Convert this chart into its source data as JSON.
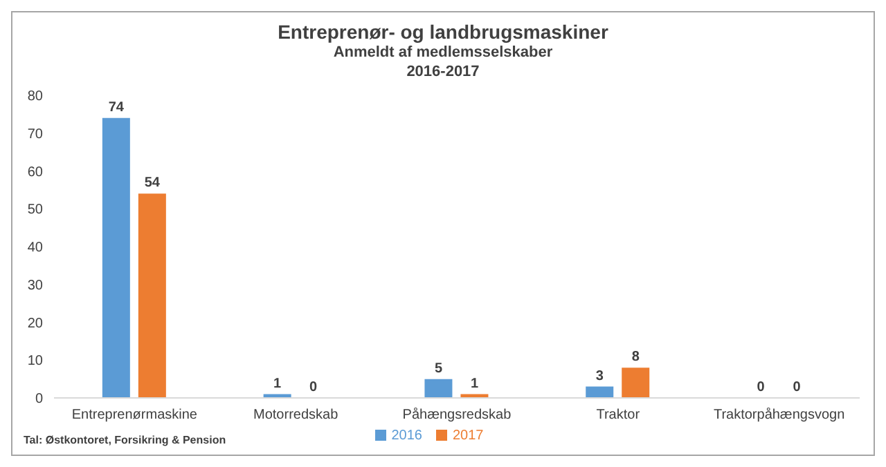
{
  "chart_data": {
    "type": "bar",
    "title": "Entreprenør- og landbrugsmaskiner",
    "subtitle": "Anmeldt af medlemsselskaber\n2016-2017",
    "categories": [
      "Entreprenørmaskine",
      "Motorredskab",
      "Påhængsredskab",
      "Traktor",
      "Traktorpåhængsvogn"
    ],
    "series": [
      {
        "name": "2016",
        "color": "#5b9bd5",
        "values": [
          74,
          1,
          5,
          3,
          0
        ]
      },
      {
        "name": "2017",
        "color": "#ed7d31",
        "values": [
          54,
          0,
          1,
          8,
          0
        ]
      }
    ],
    "ylim": [
      0,
      80
    ],
    "yticks": [
      0,
      10,
      20,
      30,
      40,
      50,
      60,
      70,
      80
    ],
    "grid": false,
    "legend": "bottom",
    "data_labels": true,
    "annotations": [
      "Tal: Østkontoret, Forsikring & Pension"
    ]
  }
}
